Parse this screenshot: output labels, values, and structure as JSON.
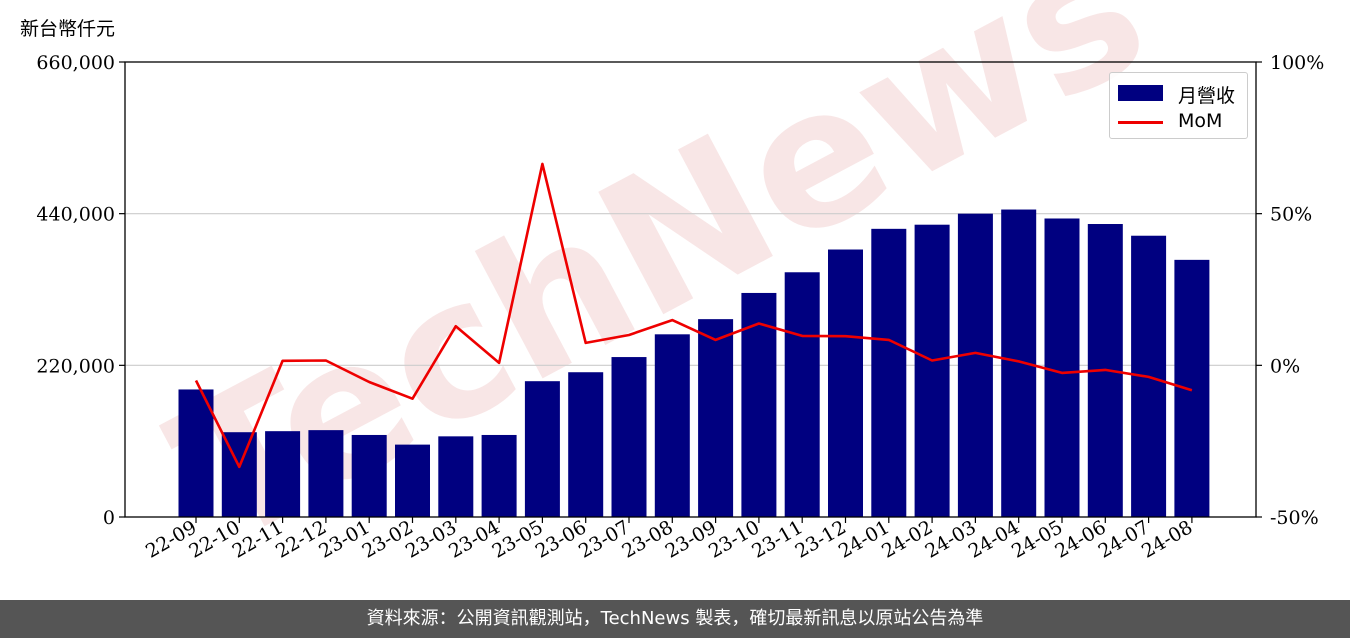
{
  "chart_data": {
    "type": "bar+line",
    "unit_label": "新台幣仟元",
    "categories": [
      "22-09",
      "22-10",
      "22-11",
      "22-12",
      "23-01",
      "23-02",
      "23-03",
      "23-04",
      "23-05",
      "23-06",
      "23-07",
      "23-08",
      "23-09",
      "23-10",
      "23-11",
      "23-12",
      "24-01",
      "24-02",
      "24-03",
      "24-04",
      "24-05",
      "24-06",
      "24-07",
      "24-08"
    ],
    "series": [
      {
        "name": "月營收",
        "axis": "left",
        "type": "bar",
        "color": "#000080",
        "values": [
          185000,
          123000,
          124500,
          126000,
          119000,
          105000,
          117000,
          119000,
          197000,
          210000,
          232000,
          265000,
          287000,
          325000,
          355000,
          388000,
          418000,
          424000,
          440000,
          446000,
          433000,
          425000,
          408000,
          373000
        ]
      },
      {
        "name": "MoM",
        "axis": "right",
        "type": "line",
        "color": "#ee0000",
        "values": [
          -5.0,
          -33.5,
          1.5,
          1.6,
          -5.5,
          -11.0,
          12.9,
          0.8,
          66.4,
          7.4,
          10.0,
          14.9,
          8.4,
          13.8,
          9.7,
          9.6,
          8.4,
          1.6,
          4.1,
          1.3,
          -2.5,
          -1.5,
          -3.8,
          -8.2
        ]
      }
    ],
    "left_axis": {
      "ylim": [
        0,
        660000
      ],
      "ticks": [
        "0",
        "220,000",
        "440,000",
        "660,000"
      ],
      "tick_values": [
        0,
        220000,
        440000,
        660000
      ]
    },
    "right_axis": {
      "ylim": [
        -50,
        100
      ],
      "ticks": [
        "-50%",
        "0%",
        "50%",
        "100%"
      ],
      "tick_values": [
        -50,
        0,
        50,
        100
      ]
    },
    "grid": "horizontal",
    "legend_position": "top-right"
  },
  "watermark": "TechNews",
  "footer_text": "資料來源：公開資訊觀測站，TechNews 製表，確切最新訊息以原站公告為準"
}
